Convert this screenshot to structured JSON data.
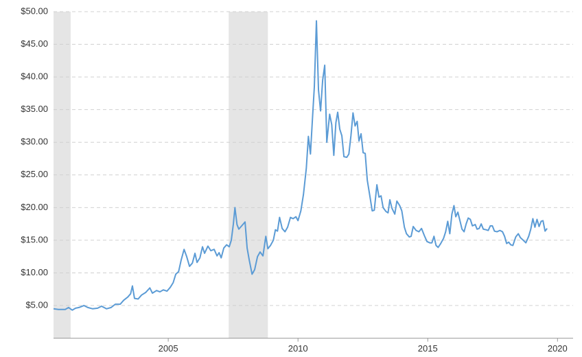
{
  "chart_data": {
    "type": "line",
    "x": [
      2000.58,
      2000.77,
      2001.03,
      2001.16,
      2001.3,
      2001.43,
      2001.56,
      2001.75,
      2001.9,
      2002.09,
      2002.28,
      2002.43,
      2002.62,
      2002.8,
      2002.96,
      2003.15,
      2003.28,
      2003.44,
      2003.55,
      2003.62,
      2003.7,
      2003.84,
      2003.97,
      2004.13,
      2004.29,
      2004.39,
      2004.55,
      2004.68,
      2004.81,
      2004.95,
      2005.08,
      2005.19,
      2005.29,
      2005.4,
      2005.5,
      2005.61,
      2005.71,
      2005.82,
      2005.93,
      2006.03,
      2006.11,
      2006.22,
      2006.32,
      2006.4,
      2006.53,
      2006.64,
      2006.77,
      2006.88,
      2006.96,
      2007.04,
      2007.14,
      2007.25,
      2007.35,
      2007.43,
      2007.51,
      2007.57,
      2007.65,
      2007.72,
      2007.83,
      2007.96,
      2008.04,
      2008.12,
      2008.23,
      2008.33,
      2008.44,
      2008.54,
      2008.65,
      2008.76,
      2008.84,
      2008.94,
      2009.05,
      2009.13,
      2009.21,
      2009.29,
      2009.39,
      2009.5,
      2009.6,
      2009.71,
      2009.81,
      2009.92,
      2010.0,
      2010.11,
      2010.21,
      2010.32,
      2010.4,
      2010.48,
      2010.56,
      2010.63,
      2010.71,
      2010.79,
      2010.87,
      2010.95,
      2011.03,
      2011.11,
      2011.22,
      2011.3,
      2011.38,
      2011.46,
      2011.53,
      2011.61,
      2011.69,
      2011.77,
      2011.88,
      2011.96,
      2012.04,
      2012.12,
      2012.2,
      2012.28,
      2012.35,
      2012.43,
      2012.51,
      2012.59,
      2012.67,
      2012.78,
      2012.86,
      2012.94,
      2013.04,
      2013.12,
      2013.2,
      2013.28,
      2013.39,
      2013.47,
      2013.54,
      2013.62,
      2013.73,
      2013.81,
      2013.92,
      2014.0,
      2014.1,
      2014.18,
      2014.29,
      2014.36,
      2014.44,
      2014.55,
      2014.66,
      2014.76,
      2014.87,
      2014.97,
      2015.08,
      2015.16,
      2015.24,
      2015.32,
      2015.4,
      2015.5,
      2015.61,
      2015.69,
      2015.77,
      2015.85,
      2015.93,
      2016.01,
      2016.08,
      2016.16,
      2016.24,
      2016.32,
      2016.4,
      2016.48,
      2016.56,
      2016.64,
      2016.72,
      2016.83,
      2016.9,
      2016.98,
      2017.06,
      2017.14,
      2017.25,
      2017.33,
      2017.41,
      2017.49,
      2017.57,
      2017.67,
      2017.78,
      2017.88,
      2017.96,
      2018.04,
      2018.12,
      2018.2,
      2018.28,
      2018.39,
      2018.49,
      2018.57,
      2018.68,
      2018.78,
      2018.89,
      2018.97,
      2019.05,
      2019.13,
      2019.21,
      2019.29,
      2019.37,
      2019.44,
      2019.52,
      2019.6
    ],
    "series": [
      {
        "color": "#5b9bd5",
        "values": [
          4.5,
          4.4,
          4.4,
          4.7,
          4.3,
          4.6,
          4.7,
          5.0,
          4.7,
          4.5,
          4.6,
          4.9,
          4.5,
          4.7,
          5.2,
          5.2,
          5.8,
          6.3,
          6.8,
          8.0,
          6.1,
          6.0,
          6.6,
          7.0,
          7.7,
          6.9,
          7.3,
          7.1,
          7.4,
          7.2,
          7.8,
          8.5,
          9.8,
          10.2,
          12.0,
          13.6,
          12.5,
          11.0,
          11.5,
          13.0,
          11.6,
          12.3,
          14.0,
          13.0,
          14.1,
          13.4,
          13.6,
          12.6,
          13.1,
          12.3,
          13.8,
          14.3,
          14.0,
          15.0,
          17.5,
          20.0,
          17.4,
          16.7,
          17.2,
          17.8,
          13.8,
          12.0,
          9.8,
          10.5,
          12.5,
          13.2,
          12.6,
          15.6,
          13.7,
          14.2,
          15.0,
          16.6,
          16.4,
          18.5,
          16.8,
          16.3,
          17.0,
          18.5,
          18.3,
          18.6,
          18.0,
          19.5,
          22.0,
          26.0,
          30.9,
          28.2,
          33.8,
          38.5,
          48.6,
          38.0,
          34.8,
          39.5,
          41.8,
          30.0,
          34.3,
          32.7,
          28.0,
          33.0,
          34.6,
          32.0,
          31.0,
          27.8,
          27.7,
          28.2,
          31.0,
          34.5,
          32.5,
          33.2,
          30.2,
          31.3,
          28.4,
          28.3,
          24.2,
          21.5,
          19.5,
          19.6,
          23.5,
          21.6,
          21.8,
          20.0,
          19.4,
          19.2,
          21.2,
          19.9,
          19.0,
          21.0,
          20.3,
          19.5,
          17.0,
          16.0,
          15.5,
          15.6,
          17.1,
          16.5,
          16.3,
          16.8,
          15.7,
          14.8,
          14.6,
          14.6,
          15.6,
          14.2,
          13.9,
          14.5,
          15.3,
          16.3,
          17.9,
          16.0,
          19.0,
          20.3,
          18.6,
          19.3,
          18.0,
          16.7,
          16.3,
          17.5,
          18.4,
          18.2,
          17.2,
          17.4,
          16.7,
          16.8,
          17.5,
          16.7,
          16.6,
          16.5,
          17.2,
          17.2,
          16.4,
          16.3,
          16.5,
          16.3,
          15.6,
          14.5,
          14.7,
          14.3,
          14.2,
          15.5,
          16.0,
          15.4,
          15.0,
          14.6,
          15.6,
          16.7,
          18.3,
          17.0,
          18.2,
          17.1,
          17.9,
          18.0,
          16.4,
          16.8
        ]
      }
    ],
    "xlim": [
      2000.58,
      2020.6
    ],
    "xticks": [
      2005,
      2010,
      2015,
      2020
    ],
    "ylim": [
      0,
      50
    ],
    "yticks": [
      {
        "value": 5,
        "label": "$5.00"
      },
      {
        "value": 10,
        "label": "$10.00"
      },
      {
        "value": 15,
        "label": "$15.00"
      },
      {
        "value": 20,
        "label": "$20.00"
      },
      {
        "value": 25,
        "label": "$25.00"
      },
      {
        "value": 30,
        "label": "$30.00"
      },
      {
        "value": 35,
        "label": "$35.00"
      },
      {
        "value": 40,
        "label": "$40.00"
      },
      {
        "value": 45,
        "label": "$45.00"
      },
      {
        "value": 50,
        "label": "$50.00"
      }
    ],
    "grid": true,
    "shaded_ranges": [
      [
        2000.58,
        2001.24
      ],
      [
        2007.33,
        2008.84
      ]
    ]
  }
}
